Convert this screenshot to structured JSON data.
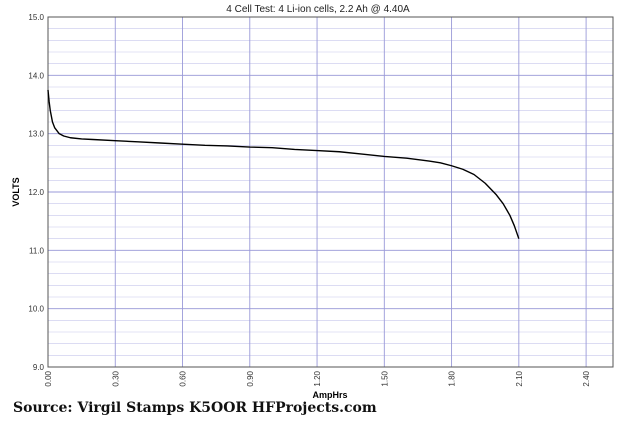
{
  "chart_data": {
    "type": "line",
    "title": "4 Cell Test: 4 Li-ion cells, 2.2 Ah @ 4.40A",
    "xlabel": "AmpHrs",
    "ylabel": "VOLTS",
    "xlim": [
      0,
      2.52
    ],
    "ylim": [
      9.0,
      15.0
    ],
    "xticks": [
      "0.00",
      "0.30",
      "0.60",
      "0.90",
      "1.20",
      "1.50",
      "1.80",
      "2.10",
      "2.40"
    ],
    "yticks": [
      "9.0",
      "10.0",
      "11.0",
      "12.0",
      "13.0",
      "14.0",
      "15.0"
    ],
    "grid": true,
    "series": [
      {
        "name": "",
        "color": "#000000",
        "x": [
          0.0,
          0.005,
          0.01,
          0.02,
          0.03,
          0.05,
          0.07,
          0.1,
          0.15,
          0.2,
          0.3,
          0.4,
          0.5,
          0.6,
          0.7,
          0.8,
          0.9,
          1.0,
          1.1,
          1.2,
          1.3,
          1.4,
          1.5,
          1.6,
          1.7,
          1.75,
          1.8,
          1.85,
          1.9,
          1.95,
          2.0,
          2.03,
          2.06,
          2.08,
          2.1
        ],
        "y": [
          13.75,
          13.55,
          13.4,
          13.2,
          13.1,
          13.0,
          12.96,
          12.93,
          12.91,
          12.9,
          12.88,
          12.86,
          12.84,
          12.82,
          12.8,
          12.79,
          12.77,
          12.76,
          12.73,
          12.71,
          12.69,
          12.65,
          12.61,
          12.58,
          12.53,
          12.5,
          12.45,
          12.39,
          12.3,
          12.15,
          11.95,
          11.8,
          11.6,
          11.42,
          11.2
        ]
      }
    ]
  },
  "source_text": "Source: Virgil Stamps K5OOR HFProjects.com"
}
